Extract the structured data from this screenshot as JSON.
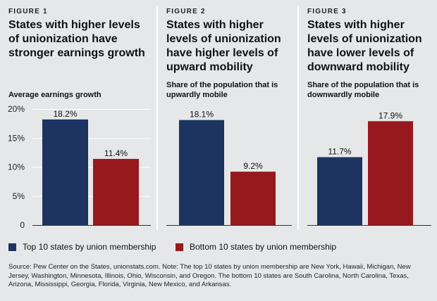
{
  "colors": {
    "top": "#1d3461",
    "bottom": "#98191d"
  },
  "figures": [
    {
      "label": "FIGURE 1",
      "title": "States with higher levels of unionization have stronger earnings growth",
      "subtitle": "Average earnings growth"
    },
    {
      "label": "FIGURE 2",
      "title": "States with higher levels of unionization have higher levels of upward mobility",
      "subtitle": "Share of the population that is upwardly mobile"
    },
    {
      "label": "FIGURE 3",
      "title": "States with higher levels of unionization have lower levels of downward mobility",
      "subtitle": "Share of the population that is downwardly mobile"
    }
  ],
  "legend": {
    "top": "Top 10 states by union membership",
    "bottom": "Bottom 10 states by union membership"
  },
  "source": "Source: Pew Center on the States, unionstats.com. Note: The top 10 states by union membership are New York, Hawaii, Michigan, New Jersey, Washington, Minnesota, Illinois, Ohio, Wisconsin, and Oregon. The bottom 10 states are South Carolina, North Carolina, Texas, Arizona, Mississippi, Georgia, Florida, Virginia, New Mexico, and Arkansas.",
  "chart_data": [
    {
      "type": "bar",
      "title": "States with higher levels of unionization have stronger earnings growth",
      "ylabel": "Average earnings growth",
      "categories": [
        "Top 10 states by union membership",
        "Bottom 10 states by union membership"
      ],
      "values": [
        18.2,
        11.4
      ],
      "value_labels": [
        "18.2%",
        "11.4%"
      ],
      "ylim": [
        0,
        20
      ],
      "yticks": [
        0,
        5,
        10,
        15,
        20
      ],
      "ytick_labels": [
        "0",
        "5%",
        "10%",
        "15%",
        "20%"
      ]
    },
    {
      "type": "bar",
      "title": "States with higher levels of unionization have higher levels of upward mobility",
      "ylabel": "Share of the population that is upwardly mobile",
      "categories": [
        "Top 10 states by union membership",
        "Bottom 10 states by union membership"
      ],
      "values": [
        18.1,
        9.2
      ],
      "value_labels": [
        "18.1%",
        "9.2%"
      ],
      "ylim": [
        0,
        20
      ]
    },
    {
      "type": "bar",
      "title": "States with higher levels of unionization have lower levels of downward mobility",
      "ylabel": "Share of the population that is downwardly mobile",
      "categories": [
        "Top 10 states by union membership",
        "Bottom 10 states by union membership"
      ],
      "values": [
        11.7,
        17.9
      ],
      "value_labels": [
        "11.7%",
        "17.9%"
      ],
      "ylim": [
        0,
        20
      ]
    }
  ]
}
